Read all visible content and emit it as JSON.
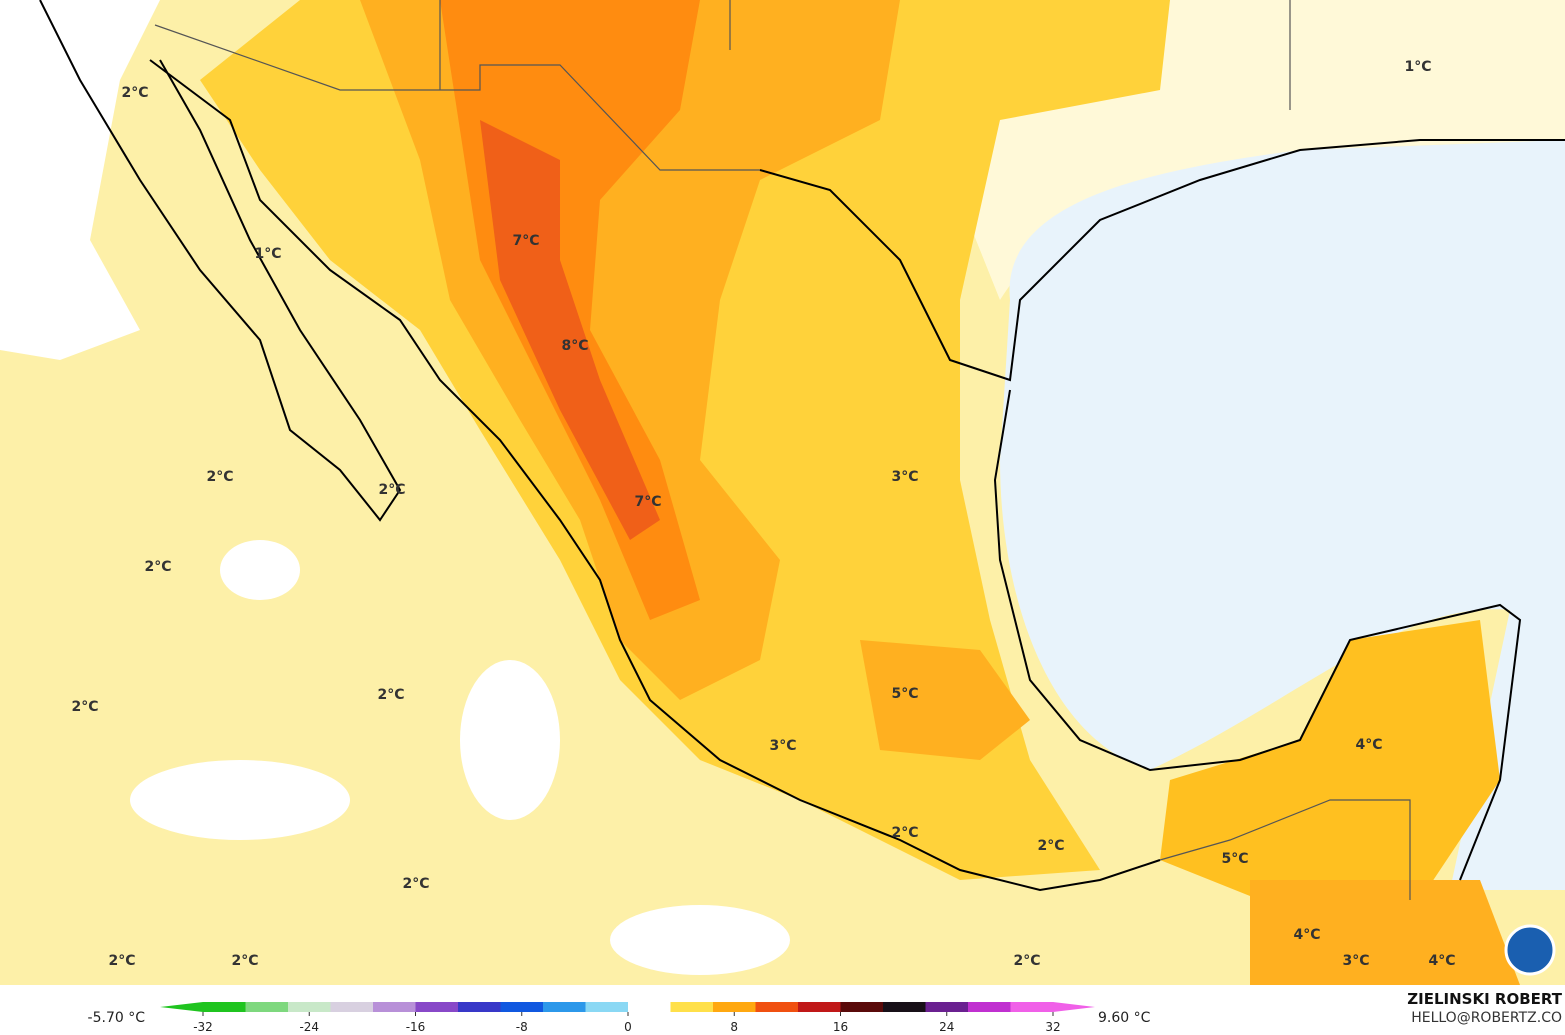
{
  "map": {
    "labels": [
      "2°C",
      "1°C",
      "7°C",
      "8°C",
      "2°C",
      "2°C",
      "7°C",
      "3°C",
      "2°C",
      "2°C",
      "2°C",
      "5°C",
      "3°C",
      "4°C",
      "2°C",
      "2°C",
      "5°C",
      "2°C",
      "2°C",
      "2°C",
      "2°C",
      "4°C",
      "3°C",
      "4°C",
      "1°C"
    ]
  },
  "colorbar": {
    "min_label": "-5.70 °C",
    "max_label": "9.60 °C",
    "lim": [
      -32,
      32
    ],
    "ticks": [
      -32,
      -24,
      -16,
      -8,
      0,
      8,
      16,
      24,
      32
    ],
    "colors": [
      "#1fc41f",
      "#7ed87e",
      "#c8e8c8",
      "#d8d0e0",
      "#b890d8",
      "#8848c8",
      "#3838c8",
      "#1058e0",
      "#2c98ea",
      "#8ad8f4",
      "#ffffff",
      "#ffe04a",
      "#ffa810",
      "#f05010",
      "#c01818",
      "#5a0a0a",
      "#181018",
      "#6a2090",
      "#c030d0",
      "#f060e8"
    ]
  },
  "credits": {
    "name": "ZIELINSKI ROBERT",
    "email": "HELLO@ROBERTZ.CO"
  }
}
